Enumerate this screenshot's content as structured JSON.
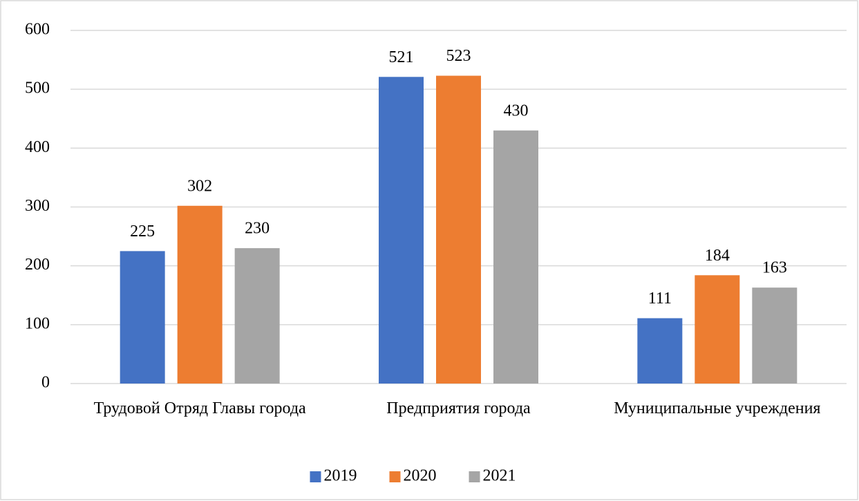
{
  "chart_data": {
    "type": "bar",
    "categories": [
      "Трудовой Отряд Главы города",
      "Предприятия города",
      "Муниципальные учреждения"
    ],
    "series": [
      {
        "name": "2019",
        "color": "#4472c4",
        "values": [
          225,
          521,
          111
        ]
      },
      {
        "name": "2020",
        "color": "#ed7d31",
        "values": [
          302,
          523,
          184
        ]
      },
      {
        "name": "2021",
        "color": "#a5a5a5",
        "values": [
          230,
          430,
          163
        ]
      }
    ],
    "ylim": [
      0,
      600
    ],
    "yticks": [
      0,
      100,
      200,
      300,
      400,
      500,
      600
    ],
    "grid": true,
    "legend": "bottom"
  }
}
